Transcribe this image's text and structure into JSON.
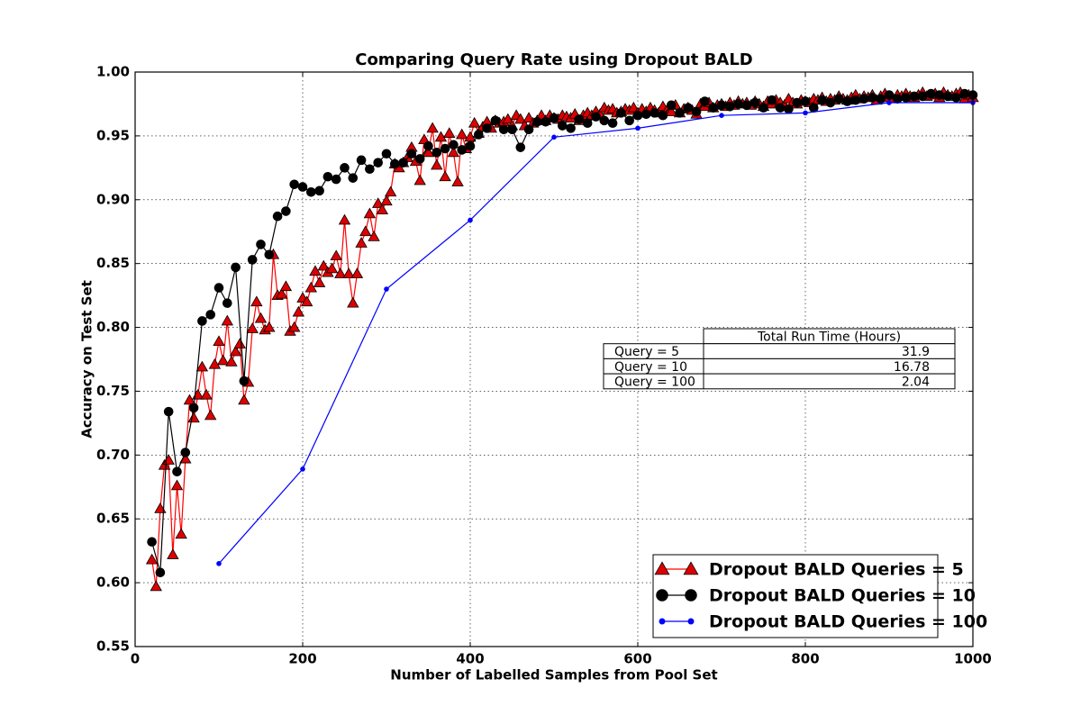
{
  "chart_data": {
    "type": "line",
    "title": "Comparing Query Rate using Dropout BALD",
    "x_label": "Number of Labelled Samples from Pool Set",
    "y_label": "Accuracy on Test Set",
    "xlim": [
      0,
      1000
    ],
    "ylim": [
      0.55,
      1.0
    ],
    "xticks": [
      0,
      200,
      400,
      600,
      800,
      1000
    ],
    "yticks": [
      0.55,
      {
        "value": 0.6,
        "label": "0.60"
      },
      0.65,
      {
        "value": 0.7,
        "label": "0.70"
      },
      0.75,
      {
        "value": 0.8,
        "label": "0.80"
      },
      0.85,
      {
        "value": 0.9,
        "label": "0.90"
      },
      0.95,
      {
        "value": 1.0,
        "label": "1.00"
      }
    ],
    "grid": true,
    "legend_position": "lower right",
    "series": [
      {
        "name": "Dropout BALD Queries = 5",
        "color": "#ff0000",
        "marker": "triangle",
        "x": [
          20,
          25,
          30,
          35,
          40,
          45,
          50,
          55,
          60,
          65,
          70,
          75,
          80,
          85,
          90,
          95,
          100,
          105,
          110,
          115,
          120,
          125,
          130,
          135,
          140,
          145,
          150,
          155,
          160,
          165,
          170,
          175,
          180,
          185,
          190,
          195,
          200,
          205,
          210,
          215,
          220,
          225,
          230,
          235,
          240,
          245,
          250,
          255,
          260,
          265,
          270,
          275,
          280,
          285,
          290,
          295,
          300,
          305,
          310,
          315,
          320,
          325,
          330,
          335,
          340,
          345,
          350,
          355,
          360,
          365,
          370,
          375,
          380,
          385,
          390,
          395,
          400,
          405,
          410,
          415,
          420,
          425,
          430,
          435,
          440,
          445,
          450,
          455,
          460,
          465,
          470,
          475,
          480,
          485,
          490,
          495,
          500,
          505,
          510,
          515,
          520,
          525,
          530,
          535,
          540,
          545,
          550,
          555,
          560,
          565,
          570,
          575,
          580,
          585,
          590,
          595,
          600,
          605,
          610,
          615,
          620,
          625,
          630,
          635,
          640,
          645,
          650,
          655,
          660,
          665,
          670,
          675,
          680,
          685,
          690,
          695,
          700,
          705,
          710,
          715,
          720,
          725,
          730,
          735,
          740,
          745,
          750,
          755,
          760,
          765,
          770,
          775,
          780,
          785,
          790,
          795,
          800,
          805,
          810,
          815,
          820,
          825,
          830,
          835,
          840,
          845,
          850,
          855,
          860,
          865,
          870,
          875,
          880,
          885,
          890,
          895,
          900,
          905,
          910,
          915,
          920,
          925,
          930,
          935,
          940,
          945,
          950,
          955,
          960,
          965,
          970,
          975,
          980,
          985,
          990,
          995,
          1000
        ],
        "values": [
          0.618,
          0.597,
          0.658,
          0.692,
          0.696,
          0.622,
          0.676,
          0.638,
          0.697,
          0.743,
          0.729,
          0.747,
          0.769,
          0.747,
          0.731,
          0.771,
          0.789,
          0.774,
          0.805,
          0.773,
          0.781,
          0.787,
          0.743,
          0.757,
          0.799,
          0.82,
          0.807,
          0.798,
          0.8,
          0.857,
          0.825,
          0.826,
          0.832,
          0.797,
          0.8,
          0.812,
          0.823,
          0.82,
          0.831,
          0.844,
          0.835,
          0.848,
          0.843,
          0.846,
          0.856,
          0.842,
          0.884,
          0.842,
          0.819,
          0.842,
          0.866,
          0.875,
          0.889,
          0.871,
          0.897,
          0.892,
          0.899,
          0.906,
          0.928,
          0.925,
          0.929,
          0.933,
          0.941,
          0.93,
          0.915,
          0.947,
          0.937,
          0.956,
          0.927,
          0.949,
          0.918,
          0.952,
          0.937,
          0.914,
          0.951,
          0.94,
          0.949,
          0.96,
          0.952,
          0.957,
          0.961,
          0.956,
          0.962,
          0.96,
          0.961,
          0.963,
          0.958,
          0.966,
          0.963,
          0.958,
          0.964,
          0.96,
          0.962,
          0.966,
          0.962,
          0.966,
          0.964,
          0.963,
          0.966,
          0.965,
          0.964,
          0.967,
          0.962,
          0.966,
          0.968,
          0.966,
          0.969,
          0.967,
          0.972,
          0.97,
          0.971,
          0.968,
          0.969,
          0.971,
          0.97,
          0.972,
          0.968,
          0.971,
          0.969,
          0.972,
          0.97,
          0.968,
          0.973,
          0.97,
          0.969,
          0.974,
          0.968,
          0.971,
          0.972,
          0.97,
          0.967,
          0.975,
          0.973,
          0.976,
          0.972,
          0.974,
          0.975,
          0.973,
          0.976,
          0.974,
          0.977,
          0.975,
          0.976,
          0.974,
          0.977,
          0.975,
          0.973,
          0.977,
          0.975,
          0.978,
          0.976,
          0.974,
          0.979,
          0.976,
          0.975,
          0.978,
          0.977,
          0.976,
          0.979,
          0.978,
          0.98,
          0.977,
          0.979,
          0.978,
          0.981,
          0.979,
          0.978,
          0.98,
          0.982,
          0.979,
          0.981,
          0.98,
          0.982,
          0.978,
          0.981,
          0.983,
          0.98,
          0.979,
          0.982,
          0.981,
          0.983,
          0.981,
          0.98,
          0.982,
          0.984,
          0.981,
          0.982,
          0.983,
          0.98,
          0.984,
          0.982,
          0.981,
          0.983,
          0.984,
          0.979,
          0.982,
          0.98
        ]
      },
      {
        "name": "Dropout BALD Queries = 10",
        "color": "#000000",
        "marker": "circle",
        "x": [
          20,
          30,
          40,
          50,
          60,
          70,
          80,
          90,
          100,
          110,
          120,
          130,
          140,
          150,
          160,
          170,
          180,
          190,
          200,
          210,
          220,
          230,
          240,
          250,
          260,
          270,
          280,
          290,
          300,
          310,
          320,
          330,
          340,
          350,
          360,
          370,
          380,
          390,
          400,
          410,
          420,
          430,
          440,
          450,
          460,
          470,
          480,
          490,
          500,
          510,
          520,
          530,
          540,
          550,
          560,
          570,
          580,
          590,
          600,
          610,
          620,
          630,
          640,
          650,
          660,
          670,
          680,
          690,
          700,
          710,
          720,
          730,
          740,
          750,
          760,
          770,
          780,
          790,
          800,
          810,
          820,
          830,
          840,
          850,
          860,
          870,
          880,
          890,
          900,
          910,
          920,
          930,
          940,
          950,
          960,
          970,
          980,
          990,
          1000
        ],
        "values": [
          0.632,
          0.608,
          0.734,
          0.687,
          0.702,
          0.737,
          0.805,
          0.81,
          0.831,
          0.819,
          0.847,
          0.758,
          0.853,
          0.865,
          0.857,
          0.887,
          0.891,
          0.912,
          0.91,
          0.906,
          0.907,
          0.918,
          0.916,
          0.925,
          0.917,
          0.931,
          0.924,
          0.929,
          0.936,
          0.928,
          0.929,
          0.936,
          0.932,
          0.942,
          0.937,
          0.94,
          0.943,
          0.939,
          0.942,
          0.951,
          0.956,
          0.962,
          0.955,
          0.955,
          0.941,
          0.955,
          0.961,
          0.961,
          0.964,
          0.958,
          0.956,
          0.963,
          0.96,
          0.965,
          0.962,
          0.96,
          0.968,
          0.962,
          0.966,
          0.967,
          0.968,
          0.966,
          0.974,
          0.968,
          0.972,
          0.969,
          0.977,
          0.972,
          0.974,
          0.973,
          0.975,
          0.974,
          0.976,
          0.972,
          0.978,
          0.972,
          0.971,
          0.976,
          0.977,
          0.972,
          0.978,
          0.976,
          0.979,
          0.977,
          0.978,
          0.979,
          0.98,
          0.979,
          0.982,
          0.979,
          0.98,
          0.981,
          0.981,
          0.983,
          0.982,
          0.981,
          0.98,
          0.983,
          0.982
        ]
      },
      {
        "name": "Dropout BALD Queries = 100",
        "color": "#0000ff",
        "marker": "dot",
        "x": [
          100,
          200,
          300,
          400,
          500,
          600,
          700,
          800,
          900,
          1000
        ],
        "values": [
          0.615,
          0.689,
          0.83,
          0.884,
          0.949,
          0.956,
          0.966,
          0.968,
          0.976,
          0.976
        ]
      }
    ],
    "table": {
      "column_label": "Total Run Time (Hours)",
      "row_labels": [
        "Query = 5",
        "Query = 10",
        "Query = 100"
      ],
      "values": [
        31.9,
        16.78,
        2.04
      ]
    }
  }
}
